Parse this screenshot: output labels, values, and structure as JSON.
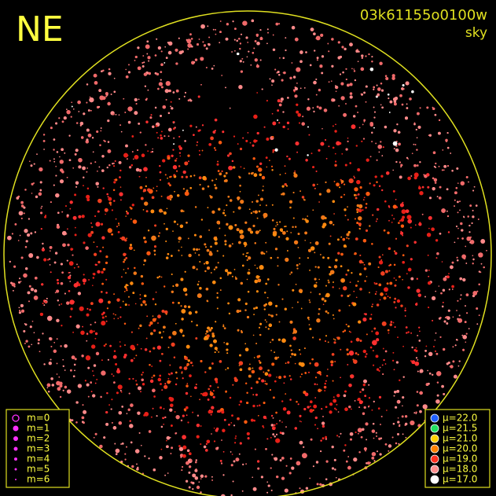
{
  "direction": "NE",
  "image_id": "03k61155o0100w",
  "mode": "sky",
  "magnitude_legend": {
    "color": "#ff30ff",
    "labels": [
      "m=0",
      "m=1",
      "m=2",
      "m=3",
      "m=4",
      "m=5",
      "m=6"
    ]
  },
  "brightness_legend": [
    {
      "label": "μ=22.0",
      "color": "#2060ff"
    },
    {
      "label": "μ=21.5",
      "color": "#20e060"
    },
    {
      "label": "μ=21.0",
      "color": "#ffd000"
    },
    {
      "label": "μ=20.0",
      "color": "#ff8000"
    },
    {
      "label": "μ=19.0",
      "color": "#ff3020"
    },
    {
      "label": "μ=18.0",
      "color": "#ff9090"
    },
    {
      "label": "μ=17.0",
      "color": "#ffffff"
    }
  ]
}
